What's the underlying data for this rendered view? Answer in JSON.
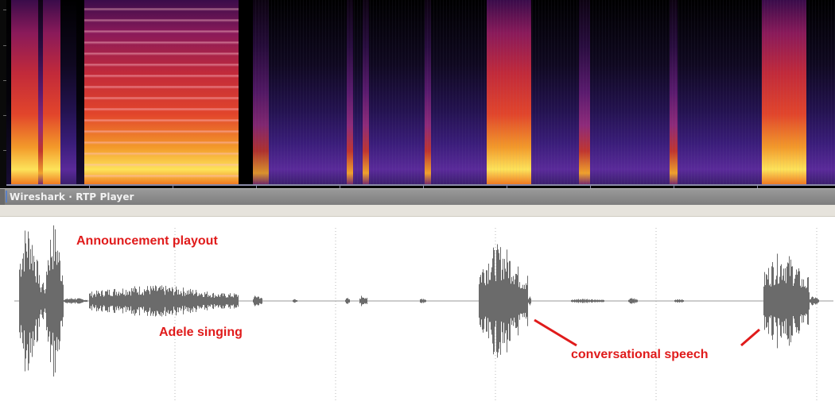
{
  "window": {
    "title": "Wireshark · RTP Player"
  },
  "annotations": {
    "announcement": "Announcement playout",
    "singing": "Adele singing",
    "speech": "conversational speech"
  },
  "colors": {
    "annotation": "#e01b1b",
    "waveform": "#6b6b6b",
    "spectrogram_hot": "#fde35a",
    "spectrogram_low": "#3a1d7a"
  }
}
